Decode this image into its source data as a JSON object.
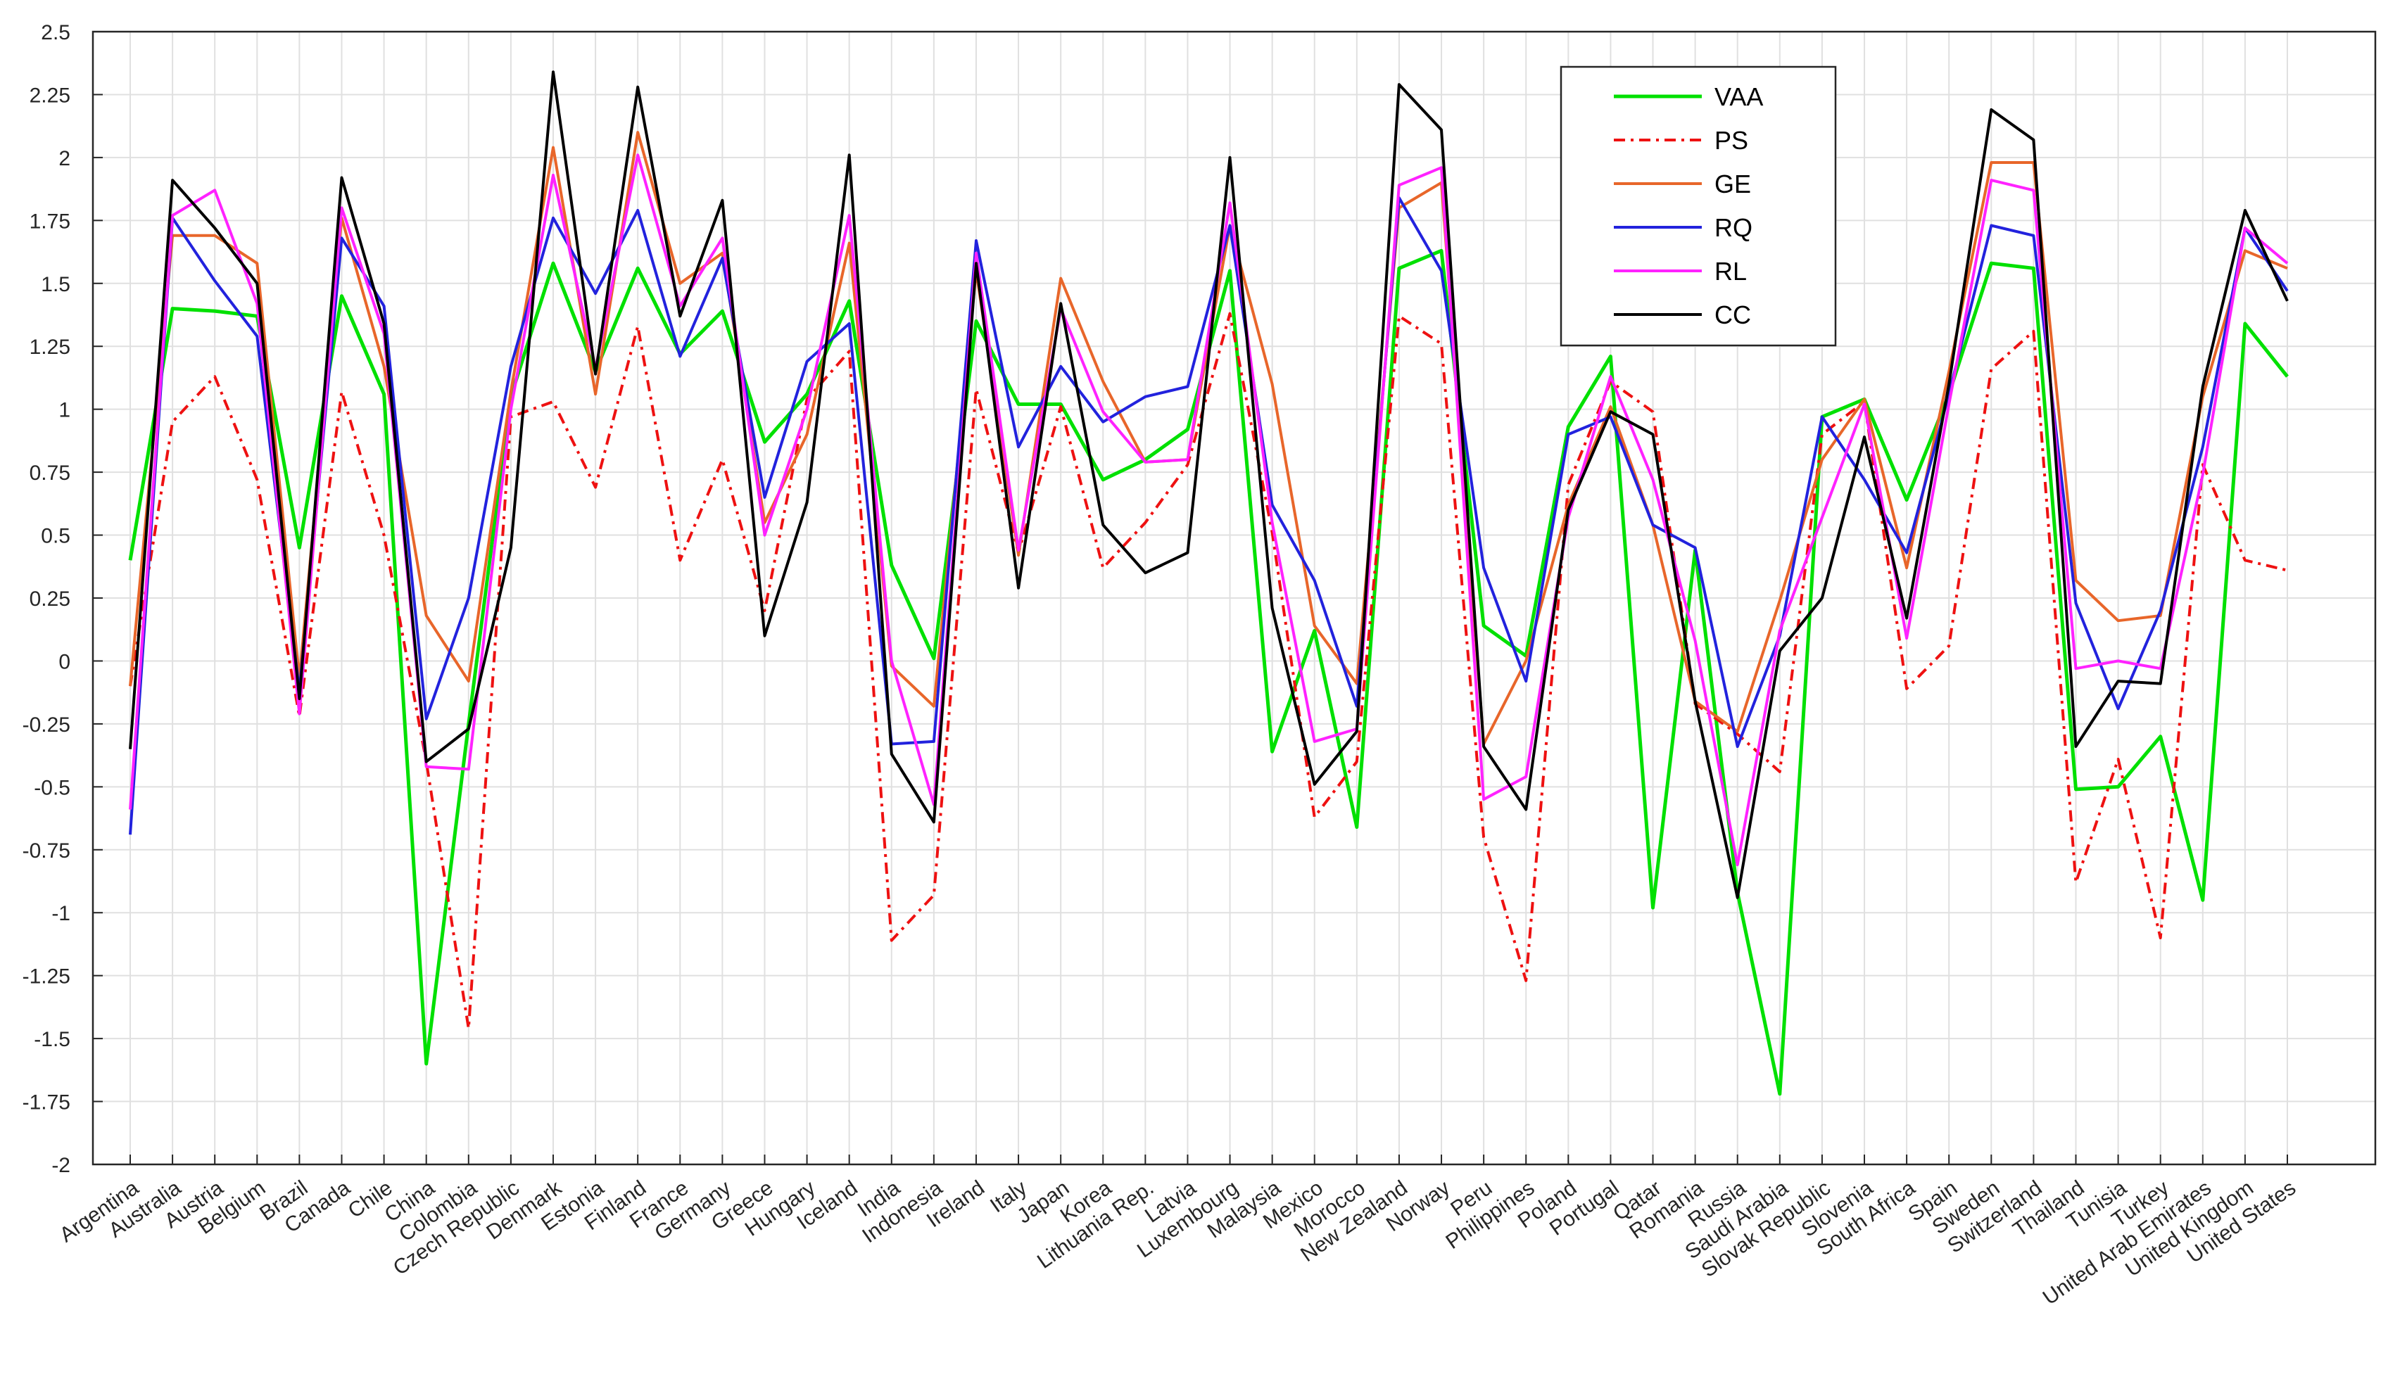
{
  "chart_data": {
    "type": "line",
    "title": "",
    "xlabel": "",
    "ylabel": "",
    "ylim": [
      -2,
      2.5
    ],
    "y_ticks": [
      "2.5",
      "2.25",
      "2",
      "1.75",
      "1.5",
      "1.25",
      "1",
      "0.75",
      "0.5",
      "0.25",
      "0",
      "-0.25",
      "-0.5",
      "-0.75",
      "-1",
      "-1.25",
      "-1.5",
      "-1.75",
      "-2"
    ],
    "grid": true,
    "legend_position": "top-right",
    "categories": [
      "Argentina",
      "Australia",
      "Austria",
      "Belgium",
      "Brazil",
      "Canada",
      "Chile",
      "China",
      "Colombia",
      "Czech Republic",
      "Denmark",
      "Estonia",
      "Finland",
      "France",
      "Germany",
      "Greece",
      "Hungary",
      "Iceland",
      "India",
      "Indonesia",
      "Ireland",
      "Italy",
      "Japan",
      "Korea",
      "Lithuania Rep.",
      "Latvia",
      "Luxembourg",
      "Malaysia",
      "Mexico",
      "Morocco",
      "New Zealand",
      "Norway",
      "Peru",
      "Philippines",
      "Poland",
      "Portugal",
      "Qatar",
      "Romania",
      "Russia",
      "Saudi Arabia",
      "Slovak Republic",
      "Slovenia",
      "South Africa",
      "Spain",
      "Sweden",
      "Switzerland",
      "Thailand",
      "Tunisia",
      "Turkey",
      "United Arab Emirates",
      "United Kingdom",
      "United States"
    ],
    "series": [
      {
        "name": "VAA",
        "color": "#00e000",
        "dash": "solid",
        "values": [
          0.4,
          1.4,
          1.39,
          1.37,
          0.45,
          1.45,
          1.06,
          -1.6,
          -0.25,
          1.05,
          1.58,
          1.15,
          1.56,
          1.22,
          1.39,
          0.87,
          1.06,
          1.43,
          0.38,
          0.01,
          1.35,
          1.02,
          1.02,
          0.72,
          0.8,
          0.92,
          1.55,
          -0.36,
          0.12,
          -0.66,
          1.56,
          1.63,
          0.14,
          0.02,
          0.93,
          1.21,
          -0.98,
          0.44,
          -0.92,
          -1.72,
          0.97,
          1.04,
          0.64,
          1.06,
          1.58,
          1.56,
          -0.51,
          -0.5,
          -0.3,
          -0.95,
          1.34,
          1.13
        ]
      },
      {
        "name": "PS",
        "color": "#ee1111",
        "dash": "dashdot",
        "values": [
          -0.1,
          0.95,
          1.13,
          0.72,
          -0.22,
          1.07,
          0.5,
          -0.4,
          -1.46,
          0.97,
          1.03,
          0.69,
          1.33,
          0.4,
          0.8,
          0.2,
          1.04,
          1.23,
          -1.11,
          -0.93,
          1.08,
          0.43,
          1.01,
          0.37,
          0.55,
          0.78,
          1.38,
          0.51,
          -0.62,
          -0.4,
          1.37,
          1.26,
          -0.7,
          -1.27,
          0.7,
          1.11,
          0.99,
          -0.17,
          -0.29,
          -0.44,
          0.9,
          1.03,
          -0.11,
          0.06,
          1.16,
          1.31,
          -0.88,
          -0.39,
          -1.1,
          0.78,
          0.4,
          0.36
        ]
      },
      {
        "name": "GE",
        "color": "#e8662a",
        "dash": "solid",
        "values": [
          -0.1,
          1.69,
          1.69,
          1.58,
          -0.07,
          1.76,
          1.17,
          0.18,
          -0.08,
          1.07,
          2.04,
          1.06,
          2.1,
          1.5,
          1.62,
          0.55,
          0.9,
          1.66,
          -0.02,
          -0.18,
          1.55,
          0.42,
          1.52,
          1.11,
          0.79,
          0.8,
          1.73,
          1.1,
          0.14,
          -0.09,
          1.8,
          1.9,
          -0.33,
          0.0,
          0.62,
          1.01,
          0.54,
          -0.16,
          -0.28,
          0.24,
          0.8,
          1.04,
          0.37,
          1.15,
          1.98,
          1.98,
          0.32,
          0.16,
          0.18,
          1.05,
          1.63,
          1.56
        ]
      },
      {
        "name": "RQ",
        "color": "#2222dd",
        "dash": "solid",
        "values": [
          -0.69,
          1.76,
          1.51,
          1.29,
          -0.12,
          1.68,
          1.41,
          -0.23,
          0.25,
          1.17,
          1.76,
          1.46,
          1.79,
          1.21,
          1.6,
          0.65,
          1.19,
          1.34,
          -0.33,
          -0.32,
          1.67,
          0.85,
          1.17,
          0.95,
          1.05,
          1.09,
          1.73,
          0.62,
          0.32,
          -0.18,
          1.84,
          1.55,
          0.37,
          -0.08,
          0.9,
          0.97,
          0.54,
          0.45,
          -0.34,
          0.1,
          0.97,
          0.72,
          0.43,
          1.06,
          1.73,
          1.69,
          0.23,
          -0.19,
          0.2,
          0.85,
          1.72,
          1.47
        ]
      },
      {
        "name": "RL",
        "color": "#ff22ff",
        "dash": "solid",
        "values": [
          -0.59,
          1.77,
          1.87,
          1.42,
          -0.21,
          1.8,
          1.3,
          -0.42,
          -0.43,
          1.0,
          1.93,
          1.16,
          2.01,
          1.41,
          1.68,
          0.5,
          1.0,
          1.77,
          0.0,
          -0.57,
          1.62,
          0.44,
          1.4,
          0.99,
          0.79,
          0.8,
          1.82,
          0.55,
          -0.32,
          -0.27,
          1.89,
          1.96,
          -0.55,
          -0.46,
          0.57,
          1.13,
          0.72,
          0.08,
          -0.81,
          0.12,
          0.57,
          1.02,
          0.09,
          1.02,
          1.91,
          1.87,
          -0.03,
          0.0,
          -0.03,
          0.74,
          1.72,
          1.58
        ]
      },
      {
        "name": "CC",
        "color": "#000000",
        "dash": "solid",
        "values": [
          -0.35,
          1.91,
          1.72,
          1.5,
          -0.15,
          1.92,
          1.34,
          -0.4,
          -0.27,
          0.45,
          2.34,
          1.14,
          2.28,
          1.37,
          1.83,
          0.1,
          0.63,
          2.01,
          -0.37,
          -0.64,
          1.58,
          0.29,
          1.42,
          0.54,
          0.35,
          0.43,
          2.0,
          0.21,
          -0.49,
          -0.28,
          2.29,
          2.11,
          -0.34,
          -0.59,
          0.6,
          0.99,
          0.9,
          -0.16,
          -0.94,
          0.04,
          0.25,
          0.89,
          0.17,
          1.1,
          2.19,
          2.07,
          -0.34,
          -0.08,
          -0.09,
          1.09,
          1.79,
          1.43
        ]
      }
    ]
  }
}
